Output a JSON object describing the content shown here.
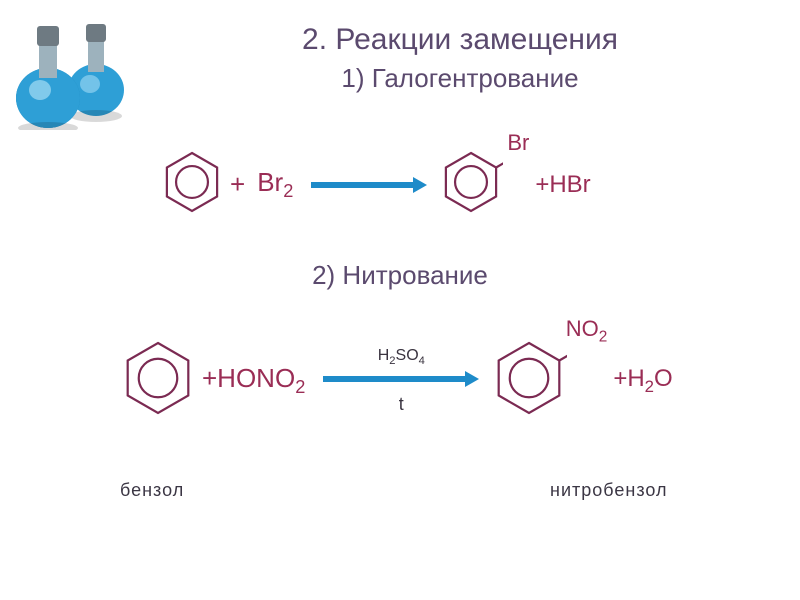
{
  "colors": {
    "title": "#5b4a6e",
    "text_dark": "#3a3440",
    "formula": "#9a2d55",
    "hex_stroke": "#7b2a52",
    "arrow": "#1e8bc9",
    "flask_body": "#2e9fd6",
    "flask_body_dark": "#1a7fb5",
    "flask_neck": "#8a9aa5",
    "flask_stopper": "#6e7a82",
    "label": "#3b3644"
  },
  "fonts": {
    "title_size": 30,
    "subtitle_size": 26,
    "formula_size": 26,
    "arrow_label_size": 16,
    "bottom_label_size": 18
  },
  "title": {
    "line1": "2. Реакции замещения",
    "line2": "1) Галогентрование"
  },
  "subtitle2": "2) Нитрование",
  "reaction1": {
    "reagent_plus": "+",
    "reagent_formula_base": "Br",
    "reagent_formula_sub": "2",
    "product_sub_label": "Br",
    "product_plus": "+HBr",
    "arrow_width": 120,
    "hex_size": 64
  },
  "reaction2": {
    "reagent_plus": "+HONO",
    "reagent_sub": "2",
    "arrow_top_base": "H",
    "arrow_top_sub1": "2",
    "arrow_top_mid": "SO",
    "arrow_top_sub2": "4",
    "arrow_bottom": "t",
    "arrow_width": 160,
    "product_sub_base": "NO",
    "product_sub_sub": "2",
    "product_plus_base": "+H",
    "product_plus_sub": "2",
    "product_plus_tail": "O",
    "hex_size": 76
  },
  "labels": {
    "left": "бензол",
    "right": "нитробензол"
  },
  "hexagon": {
    "stroke_width": 2.2,
    "inner_circle_ratio": 0.55
  }
}
